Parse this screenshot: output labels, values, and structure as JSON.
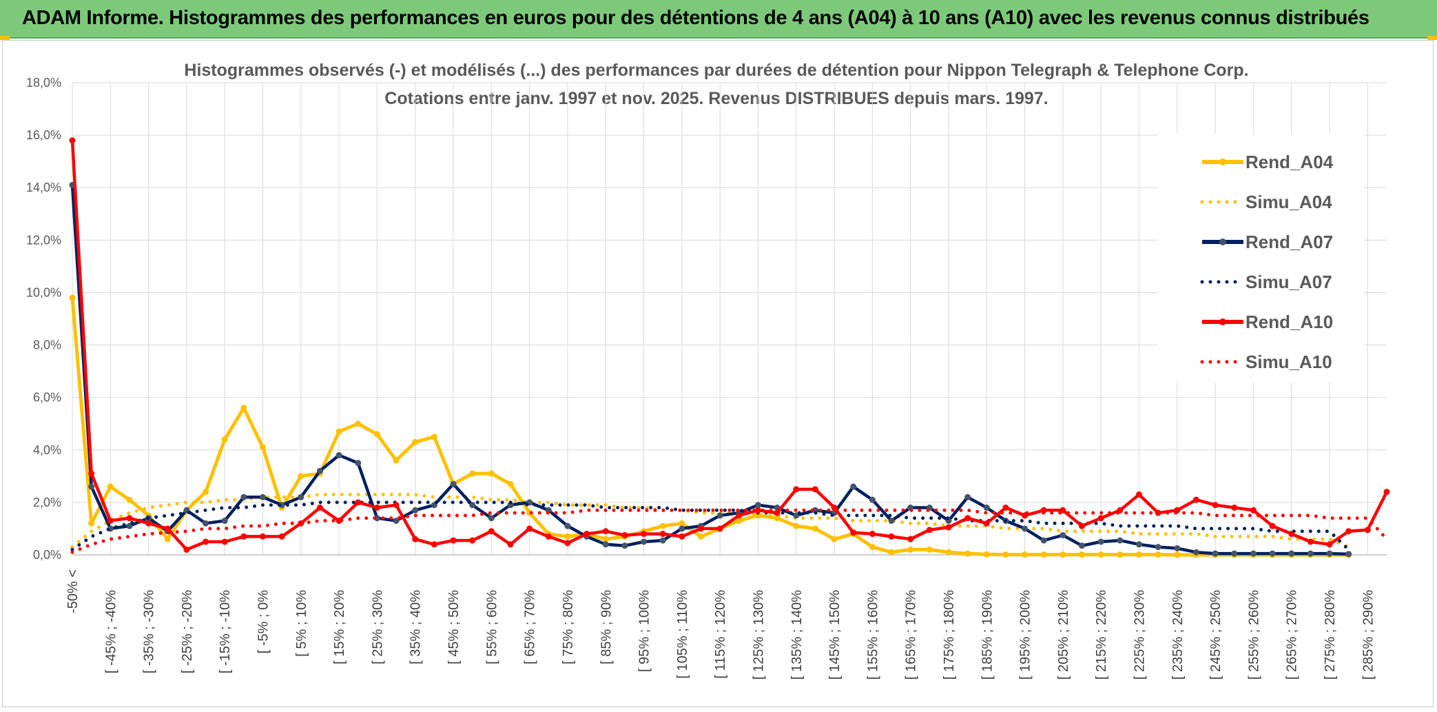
{
  "banner": {
    "title": "ADAM Informe. Histogrammes des performances en euros pour des détentions de 4 ans (A04) à 10 ans (A10) avec les revenus connus distribués"
  },
  "colors": {
    "banner_bg": "#7dc97a",
    "A04": "#ffc000",
    "A07": "#002060",
    "A07_marker": "#44546a",
    "A10": "#ff0000",
    "grid": "#d9d9d9"
  },
  "chart_data": {
    "type": "line",
    "title": "Histogrammes observés (-) et modélisés (...) des performances par durées de détention pour Nippon Telegraph & Telephone Corp.",
    "subtitle": "Cotations entre janv. 1997 et nov. 2025. Revenus DISTRIBUES depuis mars. 1997.",
    "xlabel": "",
    "ylabel": "",
    "ylim": [
      0,
      18
    ],
    "yticks": [
      "0,0%",
      "2,0%",
      "4,0%",
      "6,0%",
      "8,0%",
      "10,0%",
      "12,0%",
      "14,0%",
      "16,0%",
      "18,0%"
    ],
    "grid": true,
    "legend_position": "right",
    "x_tick_labels": [
      "-50% <",
      "[ -45% ; -40%",
      "[ -35% ; -30%",
      "[ -25% ; -20%",
      "[ -15% ; -10%",
      "[ -5% ; 0%",
      "[ 5% ; 10%",
      "[ 15% ; 20%",
      "[ 25% ; 30%",
      "[ 35% ; 40%",
      "[ 45% ; 50%",
      "[ 55% ; 60%",
      "[ 65% ; 70%",
      "[ 75% ; 80%",
      "[ 85% ; 90%",
      "[ 95% ; 100%",
      "[ 105% ; 110%",
      "[ 115% ; 120%",
      "[ 125% ; 130%",
      "[ 135% ; 140%",
      "[ 145% ; 150%",
      "[ 155% ; 160%",
      "[ 165% ; 170%",
      "[ 175% ; 180%",
      "[ 185% ; 190%",
      "[ 195% ; 200%",
      "[ 205% ; 210%",
      "[ 215% ; 220%",
      "[ 225% ; 230%",
      "[ 235% ; 240%",
      "[ 245% ; 250%",
      "[ 255% ; 260%",
      "[ 265% ; 270%",
      "[ 275% ; 280%",
      "[ 285% ; 290%"
    ],
    "series": [
      {
        "name": "Rend_A04",
        "style": "solid",
        "color": "#ffc000",
        "marker": "#ffc000",
        "values": [
          9.8,
          1.2,
          2.6,
          2.1,
          1.5,
          0.6,
          1.7,
          2.4,
          4.4,
          5.6,
          4.1,
          1.8,
          3.0,
          3.1,
          4.7,
          5.0,
          4.6,
          3.6,
          4.3,
          4.5,
          2.7,
          3.1,
          3.1,
          2.7,
          1.6,
          0.8,
          0.7,
          0.8,
          0.6,
          0.7,
          0.9,
          1.1,
          1.2,
          0.7,
          1.0,
          1.3,
          1.5,
          1.4,
          1.1,
          1.0,
          0.6,
          0.8,
          0.3,
          0.1,
          0.2,
          0.2,
          0.1,
          0.05,
          0.02,
          0.01,
          0.01,
          0.01,
          0.01,
          0.01,
          0.01,
          0.01,
          0.01,
          0.01,
          0,
          0,
          0,
          0,
          0,
          0,
          0,
          0,
          0,
          0
        ]
      },
      {
        "name": "Simu_A04",
        "style": "dotted",
        "color": "#ffc000",
        "values": [
          0.3,
          0.9,
          1.3,
          1.6,
          1.8,
          1.9,
          2.0,
          2.0,
          2.1,
          2.1,
          2.2,
          2.2,
          2.2,
          2.3,
          2.3,
          2.3,
          2.3,
          2.3,
          2.3,
          2.2,
          2.2,
          2.2,
          2.1,
          2.1,
          2.0,
          2.0,
          1.9,
          1.9,
          1.9,
          1.8,
          1.8,
          1.7,
          1.7,
          1.6,
          1.6,
          1.6,
          1.5,
          1.5,
          1.4,
          1.4,
          1.4,
          1.3,
          1.3,
          1.3,
          1.2,
          1.2,
          1.1,
          1.1,
          1.1,
          1.0,
          1.0,
          1.0,
          0.9,
          0.9,
          0.9,
          0.9,
          0.8,
          0.8,
          0.8,
          0.8,
          0.7,
          0.7,
          0.7,
          0.7,
          0.6,
          0.6,
          0.6,
          0.3
        ]
      },
      {
        "name": "Rend_A07",
        "style": "solid",
        "color": "#002060",
        "marker": "#44546a",
        "values": [
          14.1,
          2.6,
          1.0,
          1.1,
          1.4,
          0.9,
          1.7,
          1.2,
          1.3,
          2.2,
          2.2,
          1.9,
          2.2,
          3.2,
          3.8,
          3.5,
          1.4,
          1.3,
          1.7,
          1.9,
          2.7,
          1.9,
          1.4,
          1.9,
          2.0,
          1.7,
          1.1,
          0.7,
          0.4,
          0.35,
          0.5,
          0.55,
          1.0,
          1.1,
          1.5,
          1.6,
          1.9,
          1.8,
          1.5,
          1.7,
          1.6,
          2.6,
          2.1,
          1.3,
          1.8,
          1.8,
          1.3,
          2.2,
          1.8,
          1.3,
          1.0,
          0.55,
          0.75,
          0.35,
          0.5,
          0.55,
          0.4,
          0.3,
          0.25,
          0.1,
          0.05,
          0.05,
          0.05,
          0.05,
          0.05,
          0.05,
          0.05,
          0.03
        ]
      },
      {
        "name": "Simu_A07",
        "style": "dotted",
        "color": "#002060",
        "values": [
          0.2,
          0.7,
          1.0,
          1.2,
          1.4,
          1.5,
          1.6,
          1.7,
          1.8,
          1.8,
          1.9,
          1.9,
          1.9,
          2.0,
          2.0,
          2.0,
          2.0,
          2.0,
          2.0,
          2.0,
          2.0,
          2.0,
          2.0,
          2.0,
          1.9,
          1.9,
          1.9,
          1.9,
          1.8,
          1.8,
          1.8,
          1.8,
          1.7,
          1.7,
          1.7,
          1.7,
          1.6,
          1.6,
          1.6,
          1.6,
          1.5,
          1.5,
          1.5,
          1.5,
          1.4,
          1.4,
          1.4,
          1.3,
          1.3,
          1.3,
          1.3,
          1.2,
          1.2,
          1.2,
          1.2,
          1.1,
          1.1,
          1.1,
          1.1,
          1.0,
          1.0,
          1.0,
          1.0,
          0.9,
          0.9,
          0.9,
          0.9,
          0.2
        ]
      },
      {
        "name": "Rend_A10",
        "style": "solid",
        "color": "#ff0000",
        "marker": "#ff0000",
        "values": [
          15.8,
          3.1,
          1.3,
          1.4,
          1.2,
          1.0,
          0.2,
          0.5,
          0.5,
          0.7,
          0.7,
          0.7,
          1.2,
          1.8,
          1.3,
          2.0,
          1.8,
          1.9,
          0.6,
          0.4,
          0.55,
          0.55,
          0.9,
          0.4,
          1.0,
          0.7,
          0.45,
          0.8,
          0.9,
          0.75,
          0.8,
          0.8,
          0.7,
          1.0,
          1.0,
          1.5,
          1.7,
          1.6,
          2.5,
          2.5,
          1.8,
          0.85,
          0.8,
          0.7,
          0.6,
          0.95,
          1.05,
          1.4,
          1.2,
          1.8,
          1.5,
          1.7,
          1.7,
          1.1,
          1.4,
          1.7,
          2.3,
          1.6,
          1.7,
          2.1,
          1.9,
          1.8,
          1.7,
          1.1,
          0.8,
          0.5,
          0.4,
          0.9,
          0.95,
          2.4
        ]
      },
      {
        "name": "Simu_A10",
        "style": "dotted",
        "color": "#ff0000",
        "values": [
          0.1,
          0.4,
          0.6,
          0.7,
          0.8,
          0.85,
          0.9,
          1.0,
          1.0,
          1.1,
          1.1,
          1.2,
          1.2,
          1.3,
          1.3,
          1.4,
          1.4,
          1.4,
          1.5,
          1.5,
          1.5,
          1.5,
          1.6,
          1.6,
          1.6,
          1.6,
          1.6,
          1.7,
          1.7,
          1.7,
          1.7,
          1.7,
          1.7,
          1.7,
          1.7,
          1.7,
          1.7,
          1.7,
          1.7,
          1.7,
          1.7,
          1.7,
          1.7,
          1.7,
          1.7,
          1.7,
          1.7,
          1.7,
          1.6,
          1.6,
          1.6,
          1.6,
          1.6,
          1.6,
          1.6,
          1.6,
          1.6,
          1.6,
          1.6,
          1.6,
          1.5,
          1.5,
          1.5,
          1.5,
          1.5,
          1.5,
          1.4,
          1.4,
          1.4,
          0.6
        ]
      }
    ]
  }
}
